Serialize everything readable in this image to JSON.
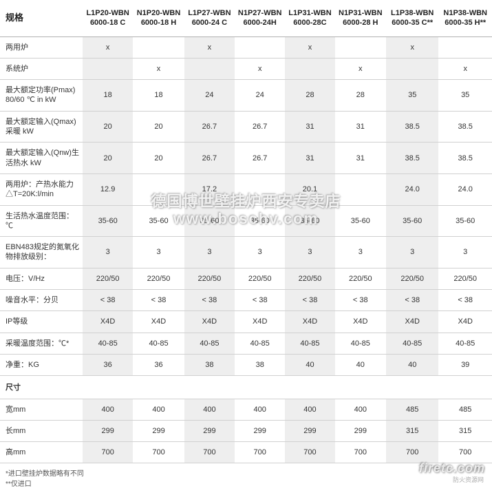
{
  "table": {
    "header_label": "规格",
    "columns": [
      "L1P20-WBN 6000-18 C",
      "N1P20-WBN 6000-18 H",
      "L1P27-WBN 6000-24 C",
      "N1P27-WBN 6000-24H",
      "L1P31-WBN 6000-28C",
      "N1P31-WBN 6000-28 H",
      "L1P38-WBN 6000-35 C**",
      "N1P38-WBN 6000-35 H**"
    ],
    "rows": [
      {
        "label": "两用炉",
        "cells": [
          "x",
          "",
          "x",
          "",
          "x",
          "",
          "x",
          ""
        ]
      },
      {
        "label": "系统炉",
        "cells": [
          "",
          "x",
          "",
          "x",
          "",
          "x",
          "",
          "x"
        ]
      },
      {
        "label": "最大额定功率(Pmax) 80/60 ℃ in kW",
        "cells": [
          "18",
          "18",
          "24",
          "24",
          "28",
          "28",
          "35",
          "35"
        ]
      },
      {
        "label": "最大额定输入(Qmax) 采暖 kW",
        "cells": [
          "20",
          "20",
          "26.7",
          "26.7",
          "31",
          "31",
          "38.5",
          "38.5"
        ]
      },
      {
        "label": "最大额定输入(Qnw)生活热水 kW",
        "cells": [
          "20",
          "20",
          "26.7",
          "26.7",
          "31",
          "31",
          "38.5",
          "38.5"
        ]
      },
      {
        "label": "两用炉：产热水能力 △T=20K:l/min",
        "cells": [
          "12.9",
          "",
          "17.2",
          "",
          "20.1",
          "",
          "24.0",
          "24.0"
        ]
      },
      {
        "label": "生活热水温度范围：℃",
        "cells": [
          "35-60",
          "35-60",
          "35-60",
          "35-60",
          "35-60",
          "35-60",
          "35-60",
          "35-60"
        ]
      },
      {
        "label": "EBN483规定的氮氧化物排放级别：",
        "cells": [
          "3",
          "3",
          "3",
          "3",
          "3",
          "3",
          "3",
          "3"
        ]
      },
      {
        "label": "电压：V/Hz",
        "cells": [
          "220/50",
          "220/50",
          "220/50",
          "220/50",
          "220/50",
          "220/50",
          "220/50",
          "220/50"
        ]
      },
      {
        "label": "噪音水平：分贝",
        "cells": [
          "< 38",
          "< 38",
          "< 38",
          "< 38",
          "< 38",
          "< 38",
          "< 38",
          "< 38"
        ]
      },
      {
        "label": "IP等级",
        "cells": [
          "X4D",
          "X4D",
          "X4D",
          "X4D",
          "X4D",
          "X4D",
          "X4D",
          "X4D"
        ]
      },
      {
        "label": "采暖温度范围：℃*",
        "cells": [
          "40-85",
          "40-85",
          "40-85",
          "40-85",
          "40-85",
          "40-85",
          "40-85",
          "40-85"
        ]
      },
      {
        "label": "净重：KG",
        "cells": [
          "36",
          "36",
          "38",
          "38",
          "40",
          "40",
          "40",
          "39"
        ]
      }
    ],
    "section_header": "尺寸",
    "dim_rows": [
      {
        "label": "宽mm",
        "cells": [
          "400",
          "400",
          "400",
          "400",
          "400",
          "400",
          "485",
          "485"
        ]
      },
      {
        "label": "长mm",
        "cells": [
          "299",
          "299",
          "299",
          "299",
          "299",
          "299",
          "315",
          "315"
        ]
      },
      {
        "label": "高mm",
        "cells": [
          "700",
          "700",
          "700",
          "700",
          "700",
          "700",
          "700",
          "700"
        ]
      }
    ],
    "footnotes": [
      "*进口壁挂炉数据略有不同",
      "**仅进口"
    ]
  },
  "watermarks": {
    "line1": "德国博世壁挂炉西安专卖店",
    "line2": "www.boschv.com",
    "corner": "firetc.com",
    "corner_sub": "防火资源网"
  },
  "style": {
    "alt_bg": "#eeeeee",
    "border_color": "#d0d0d0",
    "text_color": "#333333"
  }
}
